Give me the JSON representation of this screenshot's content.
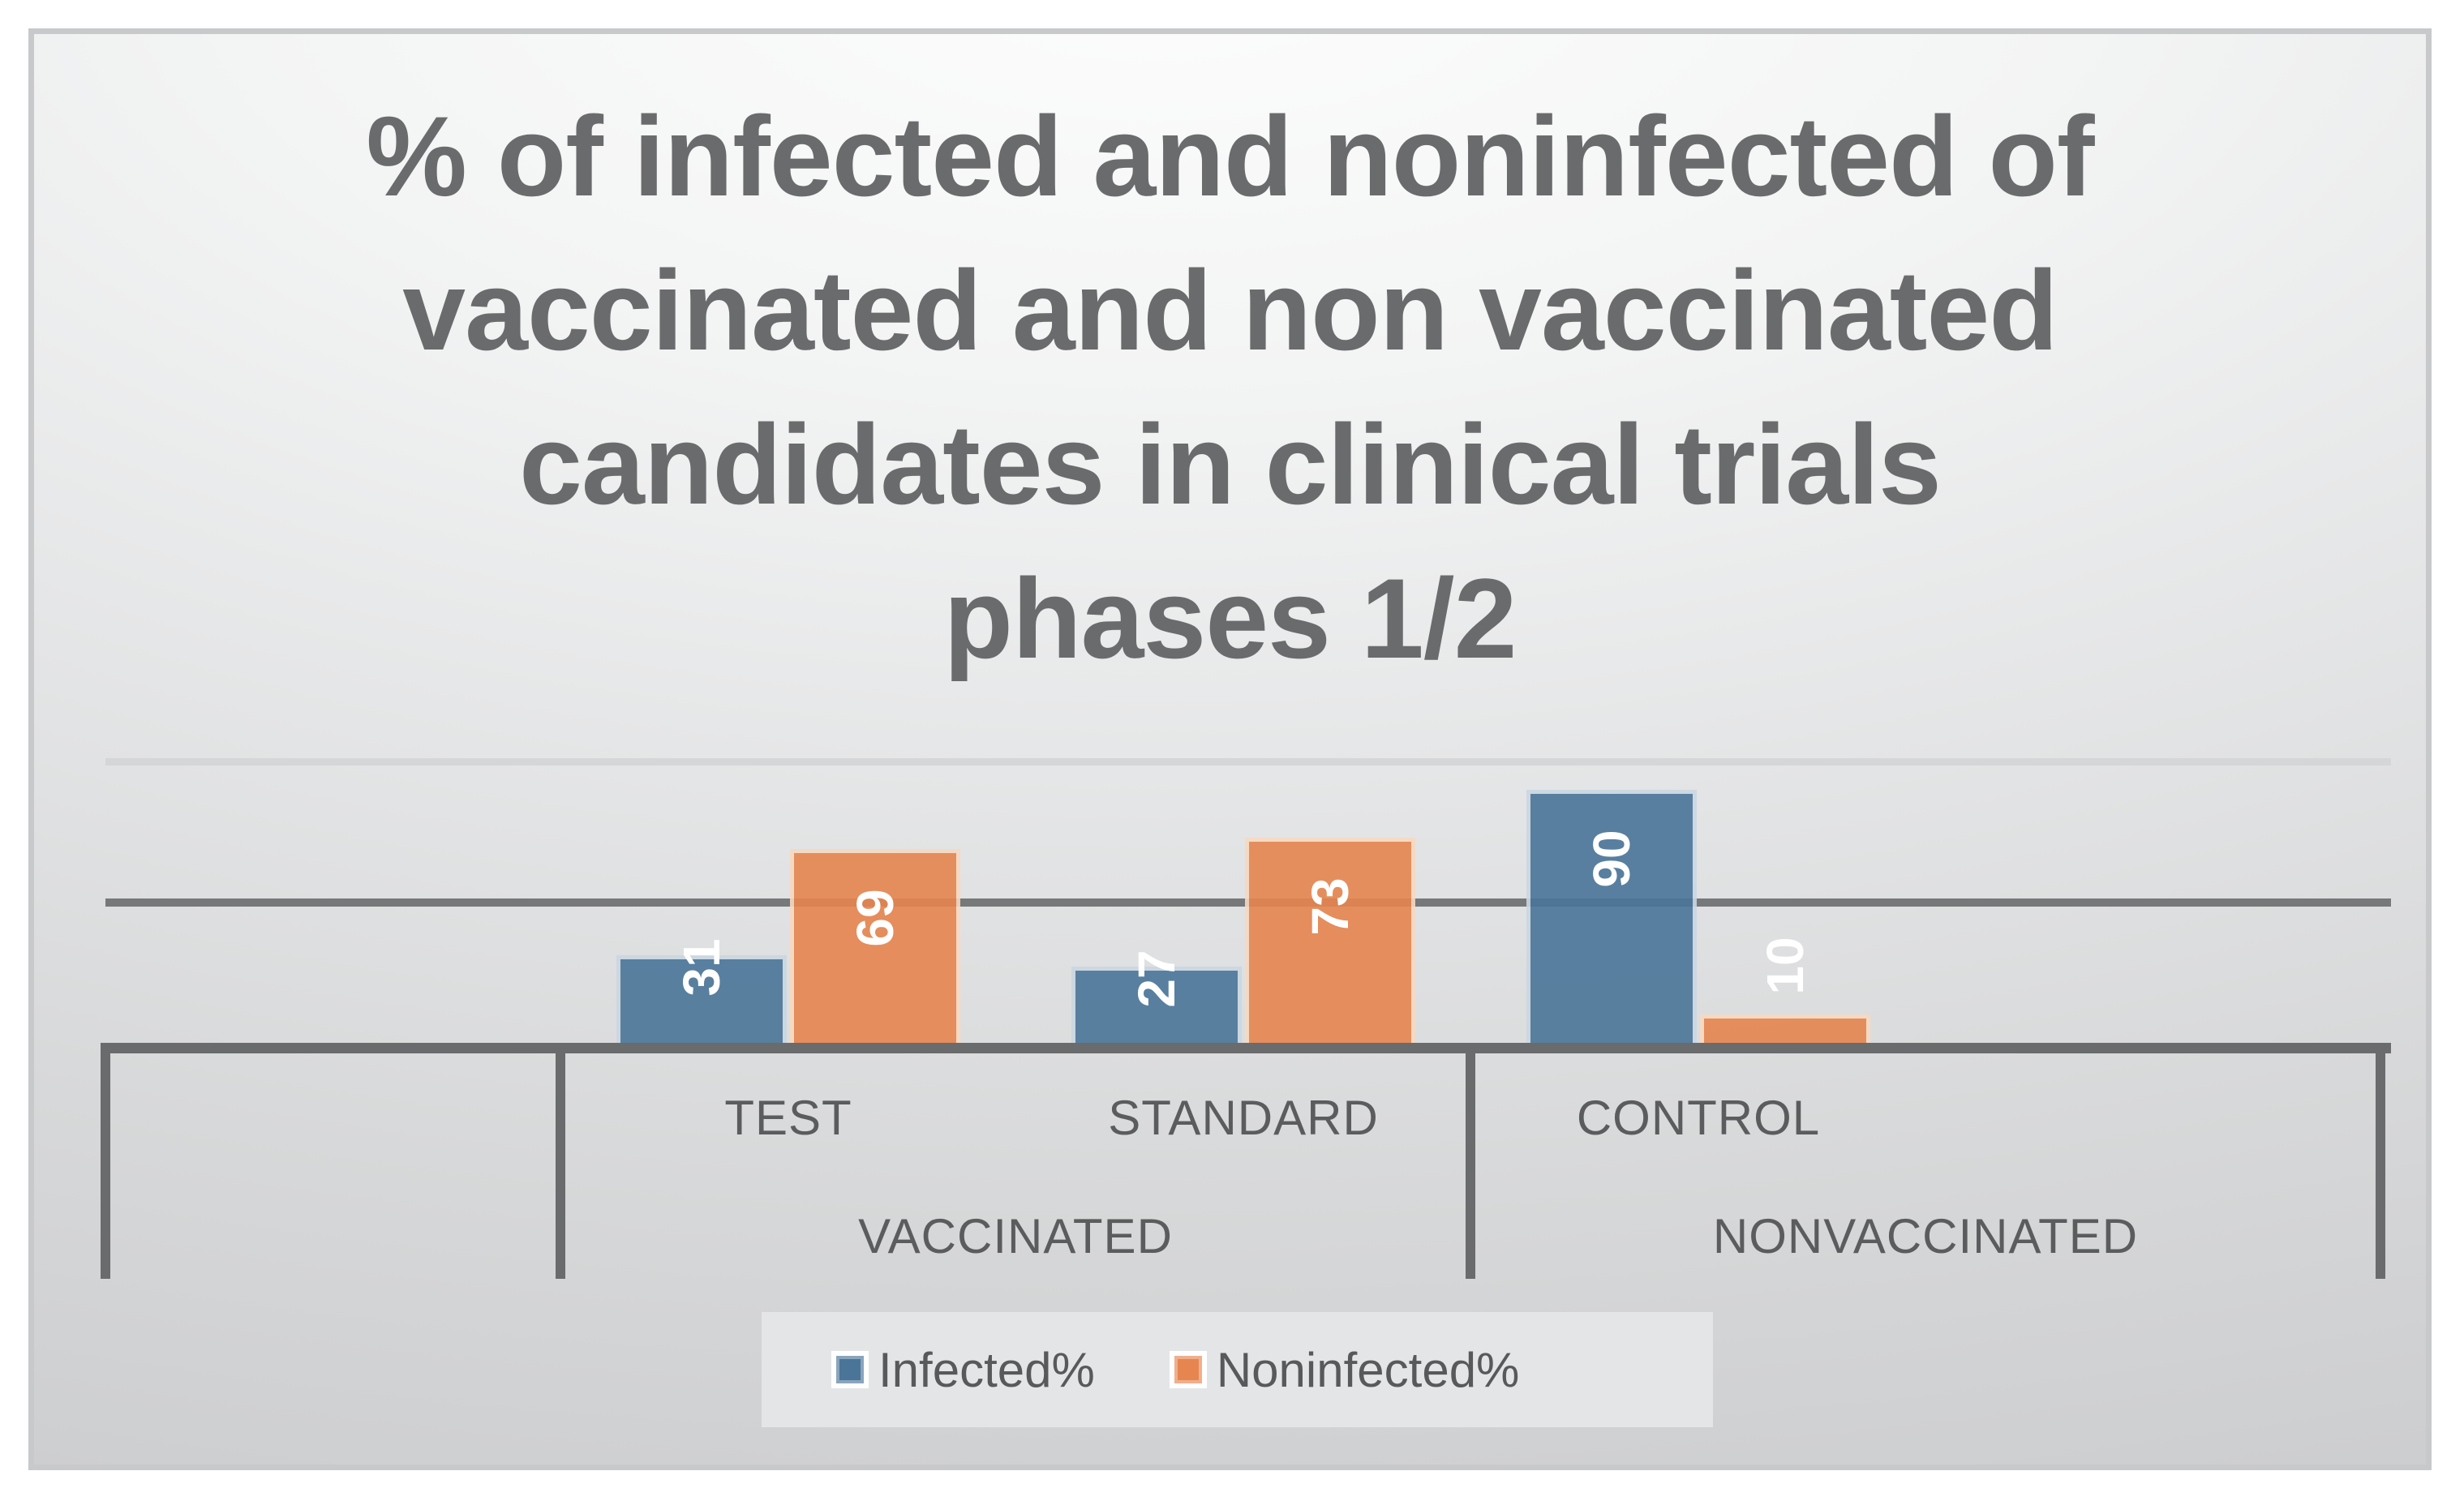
{
  "chart_data": {
    "type": "bar",
    "title": "% of infected and noninfected of vaccinated and non vaccinated candidates in clinical trials phases 1/2",
    "title_lines": [
      "% of infected and noninfected of",
      "vaccinated and non vaccinated",
      "candidates in clinical trials",
      "phases 1/2"
    ],
    "categories": [
      "",
      "TEST",
      "STANDARD",
      "CONTROL",
      ""
    ],
    "category_groups": [
      {
        "label": "",
        "span": [
          0,
          1
        ]
      },
      {
        "label": "VACCINATED",
        "span": [
          1,
          3
        ]
      },
      {
        "label": "NONVACCINATED",
        "span": [
          3,
          5
        ]
      }
    ],
    "series": [
      {
        "name": "Infected%",
        "color": "#4A7598",
        "edge_color": "#CBD7E2",
        "values": [
          null,
          31,
          27,
          90,
          null
        ]
      },
      {
        "name": "Noninfected%",
        "color": "#E6854F",
        "edge_color": "#F7D9C1",
        "values": [
          null,
          69,
          73,
          10,
          null
        ]
      }
    ],
    "ylim": [
      0,
      100
    ],
    "gridlines": [
      {
        "value": 50,
        "color": "#76787A",
        "weight": "heavy"
      },
      {
        "value": 100,
        "color": "#D5D6D8",
        "weight": "light"
      }
    ],
    "axis_line_color": "#696B6D",
    "data_label_color": "#FFFFFF",
    "data_label_rotation": -90,
    "legend_position": "bottom",
    "grid": "horizontal"
  },
  "styles": {
    "title_color": "#6A6B6D",
    "axis_text_color": "#5B5C5E",
    "legend_text_color": "#58595B",
    "legend_panel_color": "#E4E5E6",
    "slide_frame_color": "#C7C9CB"
  }
}
